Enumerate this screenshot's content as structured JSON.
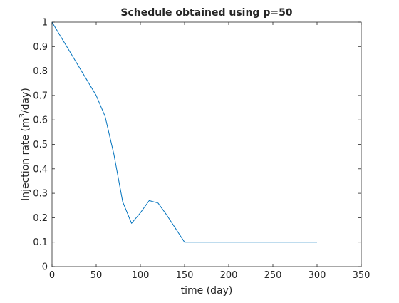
{
  "chart_data": {
    "type": "line",
    "title": "Schedule obtained using p=50",
    "xlabel": "time (day)",
    "ylabel_prefix": "Injection rate (m",
    "ylabel_sup": "3",
    "ylabel_suffix": "/day)",
    "xlim": [
      0,
      350
    ],
    "ylim": [
      0,
      1
    ],
    "xticks": [
      0,
      50,
      100,
      150,
      200,
      250,
      300,
      350
    ],
    "yticks": [
      0,
      0.1,
      0.2,
      0.3,
      0.4,
      0.5,
      0.6,
      0.7,
      0.8,
      0.9,
      1
    ],
    "xtick_labels": [
      "0",
      "50",
      "100",
      "150",
      "200",
      "250",
      "300",
      "350"
    ],
    "ytick_labels": [
      "0",
      "0.1",
      "0.2",
      "0.3",
      "0.4",
      "0.5",
      "0.6",
      "0.7",
      "0.8",
      "0.9",
      "1"
    ],
    "grid": false,
    "line_color": "#0072BD",
    "series": [
      {
        "x": [
          0,
          10,
          20,
          30,
          40,
          50,
          60,
          70,
          80,
          90,
          100,
          110,
          120,
          130,
          140,
          150,
          160,
          170,
          180,
          190,
          200,
          210,
          220,
          230,
          240,
          250,
          260,
          270,
          280,
          290,
          300
        ],
        "values": [
          1.0,
          0.94,
          0.88,
          0.82,
          0.76,
          0.7,
          0.615,
          0.46,
          0.265,
          0.177,
          0.22,
          0.27,
          0.26,
          0.21,
          0.155,
          0.1,
          0.1,
          0.1,
          0.1,
          0.1,
          0.1,
          0.1,
          0.1,
          0.1,
          0.1,
          0.1,
          0.1,
          0.1,
          0.1,
          0.1,
          0.1
        ]
      }
    ]
  }
}
